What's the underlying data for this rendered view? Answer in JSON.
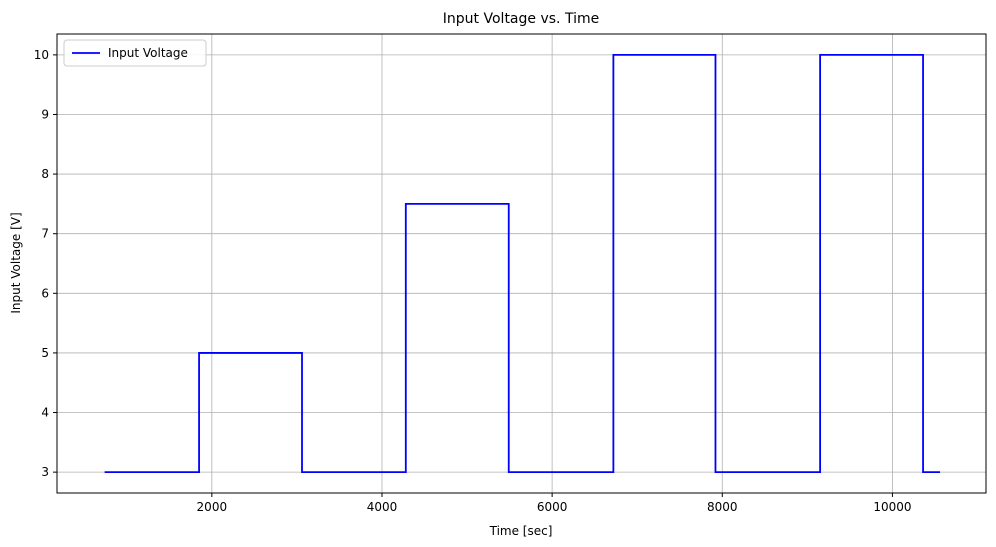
{
  "chart_data": {
    "type": "line",
    "title": "Input Voltage vs. Time",
    "xlabel": "Time [sec]",
    "ylabel": "Input Voltage [V]",
    "xlim": [
      180,
      11100
    ],
    "ylim": [
      2.65,
      10.35
    ],
    "xticks": [
      2000,
      4000,
      6000,
      8000,
      10000
    ],
    "yticks": [
      3,
      4,
      5,
      6,
      7,
      8,
      9,
      10
    ],
    "grid": true,
    "legend_position": "top-left",
    "series": [
      {
        "name": "Input Voltage",
        "color": "#0000ff",
        "step": true,
        "x": [
          740,
          1850,
          1850,
          3060,
          3060,
          4280,
          4280,
          5490,
          5490,
          6720,
          6720,
          7920,
          7920,
          9150,
          9150,
          10360,
          10360,
          10560
        ],
        "y": [
          3,
          3,
          5,
          5,
          3,
          3,
          7.5,
          7.5,
          3,
          3,
          10,
          10,
          3,
          3,
          10,
          10,
          3,
          3
        ]
      }
    ]
  }
}
